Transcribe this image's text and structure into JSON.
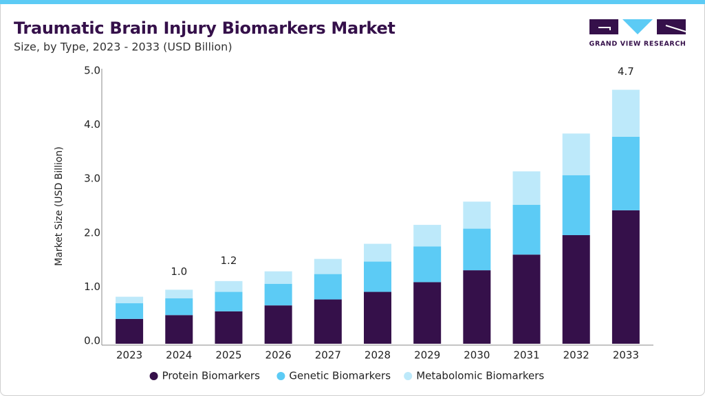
{
  "header": {
    "title": "Traumatic Brain Injury Biomarkers Market",
    "subtitle": "Size, by Type, 2023 - 2033 (USD Billion)",
    "logo_text": "GRAND VIEW RESEARCH"
  },
  "chart_data": {
    "type": "stacked-bar",
    "y_label": "Market Size (USD Billion)",
    "categories": [
      "2023",
      "2024",
      "2025",
      "2026",
      "2027",
      "2028",
      "2029",
      "2030",
      "2031",
      "2032",
      "2033"
    ],
    "series": [
      {
        "name": "Protein Biomarkers",
        "color": "#35104a",
        "values": [
          0.46,
          0.53,
          0.6,
          0.71,
          0.82,
          0.96,
          1.14,
          1.36,
          1.65,
          2.01,
          2.47
        ]
      },
      {
        "name": "Genetic Biomarkers",
        "color": "#5ccbf5",
        "values": [
          0.29,
          0.31,
          0.36,
          0.4,
          0.47,
          0.56,
          0.66,
          0.77,
          0.92,
          1.11,
          1.36
        ]
      },
      {
        "name": "Metabolomic Biomarkers",
        "color": "#bde9fa",
        "values": [
          0.12,
          0.16,
          0.2,
          0.23,
          0.28,
          0.33,
          0.4,
          0.5,
          0.62,
          0.77,
          0.87
        ]
      }
    ],
    "annotations": [
      {
        "x": "2024",
        "value": 1.0,
        "label": "1.0"
      },
      {
        "x": "2025",
        "value": 1.2,
        "label": "1.2"
      },
      {
        "x": "2033",
        "value": 4.7,
        "label": "4.7"
      }
    ],
    "ylim": [
      0,
      5
    ],
    "yticks": [
      {
        "value": 0,
        "label": "0.0"
      },
      {
        "value": 1,
        "label": "1.0"
      },
      {
        "value": 2,
        "label": "2.0"
      },
      {
        "value": 3,
        "label": "3.0"
      },
      {
        "value": 4,
        "label": "4.0"
      },
      {
        "value": 5,
        "label": "5.0"
      }
    ],
    "legend": "bottom"
  }
}
